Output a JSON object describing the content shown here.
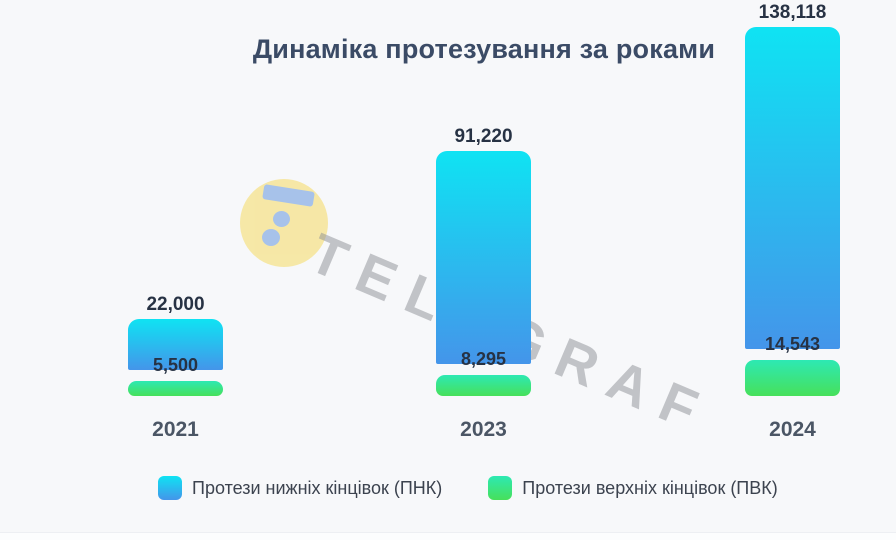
{
  "title": "Динаміка протезування за роками",
  "watermark": {
    "brand": "TELEGRAF",
    "circle_color": "#f6e7a2",
    "glyph_color": "#a3c0ea",
    "text_color": "#8d9095"
  },
  "colors": {
    "background": "#f7f8fa",
    "title_text": "#3b4b66",
    "value_label_text": "#273244",
    "year_label_text": "#4b5665",
    "pnk_gradient_top": "#0fe3f3",
    "pnk_gradient_bottom": "#4495ea",
    "pvk_gradient_top": "#2de9b3",
    "pvk_gradient_bottom": "#47e05a"
  },
  "legend": {
    "items": [
      {
        "label": "Протези нижніх кінцівок (ПНК)",
        "series": "pnk"
      },
      {
        "label": "Протези верхніх кінцівок (ПВК)",
        "series": "pvk"
      }
    ]
  },
  "chart_data": {
    "type": "bar",
    "title": "Динаміка протезування за роками",
    "categories": [
      "2021",
      "2023",
      "2024"
    ],
    "series": [
      {
        "name": "Протези нижніх кінцівок (ПНК)",
        "values": [
          22000,
          91220,
          138118
        ],
        "labels": [
          "22,000",
          "91,220",
          "138,118"
        ],
        "color_top": "#0fe3f3",
        "color_bottom": "#4495ea"
      },
      {
        "name": "Протези верхніх кінцівок (ПВК)",
        "values": [
          5500,
          8295,
          14543
        ],
        "labels": [
          "5,500",
          "8,295",
          "14,543"
        ],
        "color_top": "#2de9b3",
        "color_bottom": "#47e05a"
      }
    ],
    "ylim": [
      0,
      138118
    ],
    "grid": false,
    "axes_visible": false,
    "value_labels_position": "above-bars",
    "legend_position": "bottom"
  }
}
